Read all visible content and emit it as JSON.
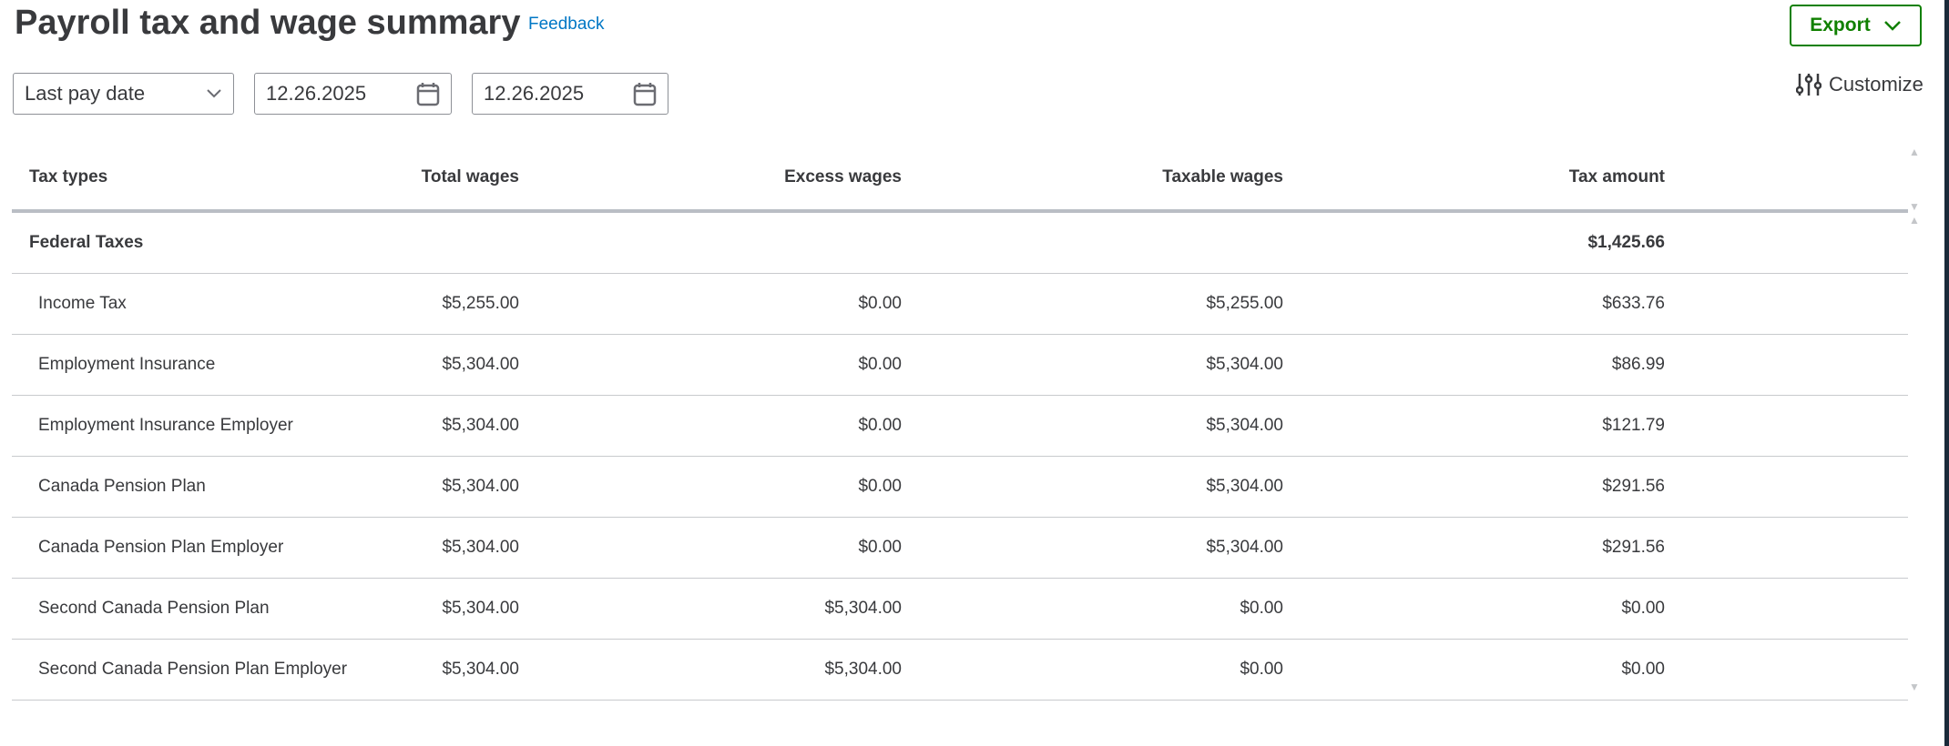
{
  "header": {
    "title": "Payroll tax and wage summary",
    "feedback": "Feedback",
    "export_label": "Export",
    "customize_label": "Customize"
  },
  "filters": {
    "period": "Last pay date",
    "start_date": "12.26.2025",
    "end_date": "12.26.2025"
  },
  "colors": {
    "accent_green": "#108000",
    "link_blue": "#0077c5"
  },
  "table": {
    "columns": [
      "Tax types",
      "Total wages",
      "Excess wages",
      "Taxable wages",
      "Tax amount"
    ],
    "group": {
      "name": "Federal Taxes",
      "tax_amount": "$1,425.66"
    },
    "rows": [
      [
        "Income Tax",
        "$5,255.00",
        "$0.00",
        "$5,255.00",
        "$633.76"
      ],
      [
        "Employment Insurance",
        "$5,304.00",
        "$0.00",
        "$5,304.00",
        "$86.99"
      ],
      [
        "Employment Insurance Employer",
        "$5,304.00",
        "$0.00",
        "$5,304.00",
        "$121.79"
      ],
      [
        "Canada Pension Plan",
        "$5,304.00",
        "$0.00",
        "$5,304.00",
        "$291.56"
      ],
      [
        "Canada Pension Plan Employer",
        "$5,304.00",
        "$0.00",
        "$5,304.00",
        "$291.56"
      ],
      [
        "Second Canada Pension Plan",
        "$5,304.00",
        "$5,304.00",
        "$0.00",
        "$0.00"
      ],
      [
        "Second Canada Pension Plan Employer",
        "$5,304.00",
        "$5,304.00",
        "$0.00",
        "$0.00"
      ]
    ]
  }
}
